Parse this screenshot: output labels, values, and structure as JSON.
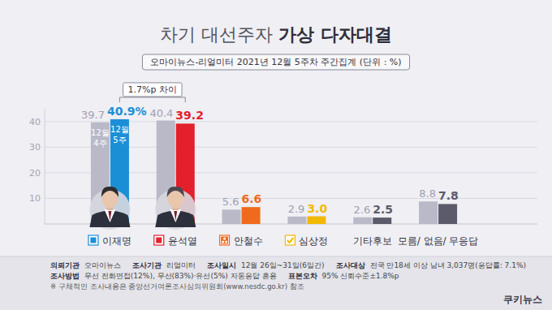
{
  "chart_data": {
    "type": "bar",
    "title": "차기 대선주자 가상 다자대결",
    "subtitle": "오마이뉴스-리얼미터 2021년 12월 5주차 주간집계 (단위 : %)",
    "categories": [
      "이재명",
      "윤석열",
      "안철수",
      "심상정",
      "기타후보",
      "모름/ 없음/ 무응답"
    ],
    "series": [
      {
        "name": "12월 4주",
        "color": "#b9b9c8",
        "values": [
          39.7,
          40.4,
          5.6,
          2.9,
          2.6,
          8.8
        ]
      },
      {
        "name": "12월 5주",
        "colors": [
          "#1b8fd6",
          "#e3202b",
          "#f06a1d",
          "#f2b900",
          "#5b5b6b",
          "#5b5b6b"
        ],
        "values": [
          40.9,
          39.2,
          6.6,
          3.0,
          2.5,
          7.8
        ],
        "value_labels": [
          "40.9%",
          "39.2",
          "6.6",
          "3.0",
          "2.5",
          "7.8"
        ]
      }
    ],
    "ylim": [
      0,
      45
    ],
    "yticks": [
      10,
      20,
      30,
      40
    ],
    "grid": true,
    "data_labels": true,
    "annotations": [
      {
        "text": "1.7%p 차이"
      }
    ],
    "footer": {
      "rows": [
        [
          {
            "label": "의뢰기관",
            "text": "오마이뉴스"
          },
          {
            "label": "조사기관",
            "text": "리얼미터"
          },
          {
            "label": "조사일시",
            "text": "12월 26일~31일(6일간)"
          },
          {
            "label": "조사대상",
            "text": "전국 만18세 이상 남녀 3,037명(응답률: 7.1%)"
          }
        ],
        [
          {
            "label": "조사방법",
            "text": "무선 전화면접(12%), 무선(83%)·유선(5%) 자동응답 혼용"
          },
          {
            "label": "표본오차",
            "text": "95% 신뢰수준±1.8%p"
          }
        ]
      ],
      "note": "※ 구체적인 조사내용은 중앙선거여론조사심의위원회(www.nesdc.go.kr) 참조"
    },
    "logo": "쿠키뉴스"
  }
}
